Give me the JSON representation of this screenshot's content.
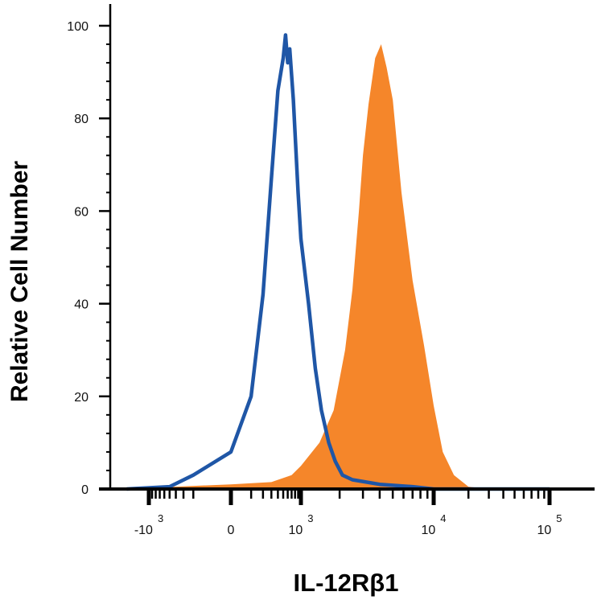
{
  "chart_data": {
    "type": "area",
    "xlabel": "IL-12Rβ1",
    "ylabel": "Relative Cell Number",
    "x_scale": "biexponential",
    "ylim": [
      0,
      100
    ],
    "y_ticks": [
      0,
      20,
      40,
      60,
      80,
      100
    ],
    "x_tick_labels": [
      {
        "base": "-10",
        "exp": "3"
      },
      {
        "base": "0",
        "exp": ""
      },
      {
        "base": "10",
        "exp": "3"
      },
      {
        "base": "10",
        "exp": "4"
      },
      {
        "base": "10",
        "exp": "5"
      }
    ],
    "grid": false,
    "series": [
      {
        "style": "outline",
        "color": "#1f56a6",
        "points": [
          [
            -2000,
            0
          ],
          [
            -500,
            0.5
          ],
          [
            -200,
            3
          ],
          [
            0,
            8
          ],
          [
            100,
            20
          ],
          [
            200,
            42
          ],
          [
            300,
            67
          ],
          [
            400,
            86
          ],
          [
            500,
            93
          ],
          [
            550,
            98
          ],
          [
            600,
            92
          ],
          [
            650,
            95
          ],
          [
            750,
            84
          ],
          [
            900,
            64
          ],
          [
            1000,
            54
          ],
          [
            1150,
            40
          ],
          [
            1300,
            26
          ],
          [
            1450,
            17
          ],
          [
            1650,
            10
          ],
          [
            1850,
            6
          ],
          [
            2100,
            3
          ],
          [
            2500,
            2
          ],
          [
            4000,
            1
          ],
          [
            7000,
            0.5
          ],
          [
            10000,
            0
          ],
          [
            100000,
            0
          ]
        ]
      },
      {
        "style": "filled",
        "color": "#f5862a",
        "points": [
          [
            -2000,
            0
          ],
          [
            -1000,
            0.5
          ],
          [
            -400,
            0.5
          ],
          [
            0,
            1
          ],
          [
            300,
            1.5
          ],
          [
            700,
            3
          ],
          [
            1000,
            5
          ],
          [
            1400,
            10
          ],
          [
            1800,
            17
          ],
          [
            2200,
            30
          ],
          [
            2500,
            43
          ],
          [
            2800,
            60
          ],
          [
            3000,
            72
          ],
          [
            3300,
            83
          ],
          [
            3700,
            93
          ],
          [
            4100,
            96
          ],
          [
            4500,
            91
          ],
          [
            5000,
            84
          ],
          [
            5800,
            64
          ],
          [
            7000,
            45
          ],
          [
            8500,
            31
          ],
          [
            10000,
            18
          ],
          [
            12000,
            8
          ],
          [
            15000,
            3
          ],
          [
            20000,
            0.5
          ],
          [
            30000,
            0
          ],
          [
            100000,
            0
          ]
        ]
      }
    ]
  }
}
